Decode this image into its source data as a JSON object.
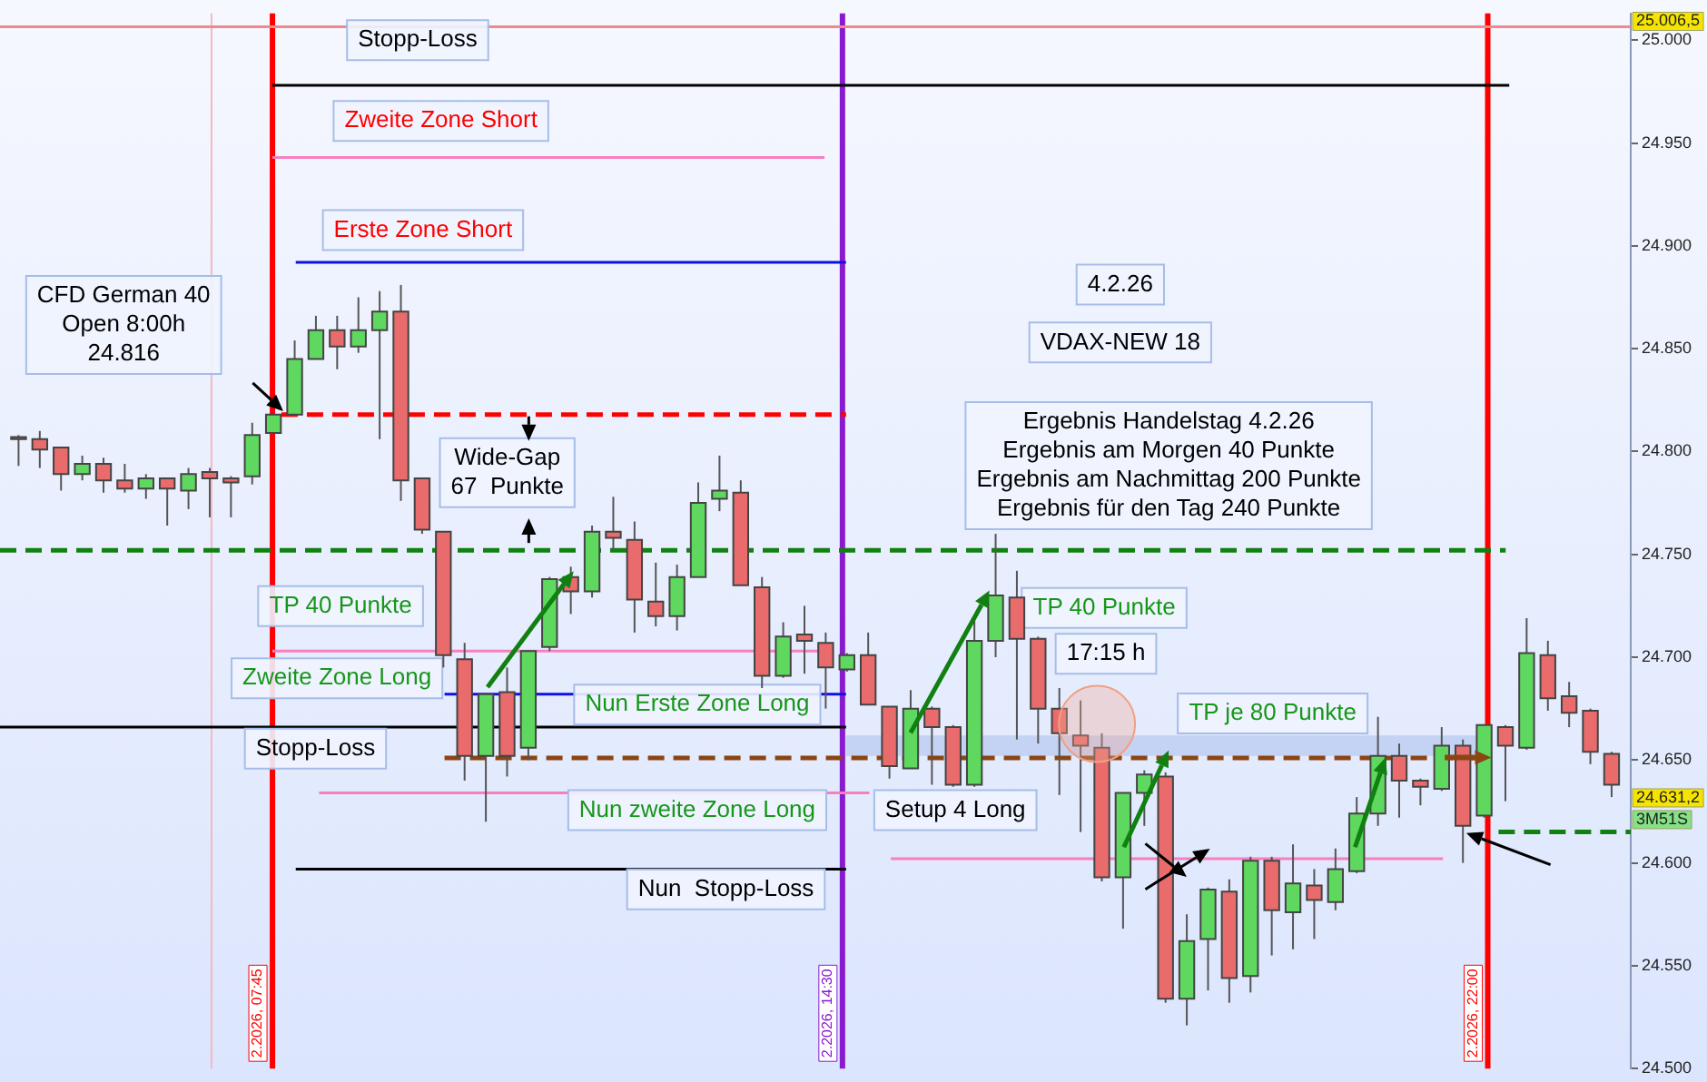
{
  "chart_data": {
    "type": "candlestick",
    "categories": [
      null,
      null,
      null,
      null,
      null,
      null,
      null,
      null,
      null,
      null,
      null,
      null,
      null,
      null,
      null,
      null,
      null,
      null,
      null,
      null,
      null,
      null,
      null,
      null,
      null,
      null,
      null,
      null,
      null,
      null,
      null,
      null,
      null,
      null,
      null,
      null,
      null,
      null,
      null,
      null,
      null,
      null,
      null,
      null,
      null,
      null,
      null,
      null,
      null,
      null,
      null,
      null,
      null,
      null,
      null,
      null,
      null,
      null,
      null,
      null,
      null,
      null,
      null,
      null,
      null,
      null,
      null,
      null,
      null,
      null,
      null,
      null,
      null,
      null,
      null,
      null
    ],
    "ohlc": [
      [
        24807,
        24808,
        24793,
        24806
      ],
      [
        24806,
        24810,
        24792,
        24801
      ],
      [
        24802,
        24802,
        24781,
        24789
      ],
      [
        24789,
        24798,
        24786,
        24794
      ],
      [
        24794,
        24797,
        24780,
        24786
      ],
      [
        24786,
        24794,
        24780,
        24782
      ],
      [
        24782,
        24789,
        24777,
        24787
      ],
      [
        24787,
        24787,
        24764,
        24782
      ],
      [
        24781,
        24792,
        24772,
        24789
      ],
      [
        24790,
        24792,
        24768,
        24787
      ],
      [
        24787,
        24788,
        24768,
        24785
      ],
      [
        24788,
        24814,
        24784,
        24808
      ],
      [
        24809,
        24818,
        24809,
        24818
      ],
      [
        24818,
        24854,
        24818,
        24845
      ],
      [
        24845,
        24866,
        24845,
        24859
      ],
      [
        24859,
        24866,
        24840,
        24851
      ],
      [
        24851,
        24875,
        24848,
        24859
      ],
      [
        24859,
        24878,
        24806,
        24868
      ],
      [
        24868,
        24881,
        24776,
        24786
      ],
      [
        24787,
        24787,
        24760,
        24762
      ],
      [
        24761,
        24761,
        24695,
        24701
      ],
      [
        24699,
        24707,
        24640,
        24652
      ],
      [
        24652,
        24682,
        24620,
        24682
      ],
      [
        24683,
        24695,
        24642,
        24652
      ],
      [
        24656,
        24703,
        24650,
        24703
      ],
      [
        24705,
        24739,
        24703,
        24738
      ],
      [
        24739,
        24744,
        24721,
        24732
      ],
      [
        24732,
        24764,
        24729,
        24761
      ],
      [
        24761,
        24778,
        24752,
        24758
      ],
      [
        24757,
        24766,
        24712,
        24728
      ],
      [
        24727,
        24746,
        24715,
        24720
      ],
      [
        24720,
        24745,
        24713,
        24739
      ],
      [
        24739,
        24785,
        24739,
        24775
      ],
      [
        24777,
        24798,
        24771,
        24781
      ],
      [
        24780,
        24786,
        24735,
        24735
      ],
      [
        24734,
        24739,
        24685,
        24691
      ],
      [
        24691,
        24717,
        24690,
        24710
      ],
      [
        24711,
        24725,
        24692,
        24708
      ],
      [
        24707,
        24712,
        24675,
        24695
      ],
      [
        24694,
        24702,
        24693,
        24701
      ],
      [
        24701,
        24712,
        24677,
        24677
      ],
      [
        24676,
        24676,
        24641,
        24647
      ],
      [
        24646,
        24684,
        24646,
        24675
      ],
      [
        24675,
        24676,
        24638,
        24666
      ],
      [
        24666,
        24667,
        24637,
        24638
      ],
      [
        24638,
        24718,
        24637,
        24708
      ],
      [
        24708,
        24760,
        24700,
        24730
      ],
      [
        24729,
        24742,
        24660,
        24709
      ],
      [
        24709,
        24710,
        24658,
        24675
      ],
      [
        24675,
        24685,
        24633,
        24663
      ],
      [
        24662,
        24679,
        24615,
        24657
      ],
      [
        24656,
        24663,
        24591,
        24593
      ],
      [
        24593,
        24634,
        24568,
        24634
      ],
      [
        24634,
        24645,
        24618,
        24643
      ],
      [
        24642,
        24644,
        24532,
        24534
      ],
      [
        24534,
        24575,
        24521,
        24562
      ],
      [
        24563,
        24588,
        24538,
        24587
      ],
      [
        24586,
        24592,
        24532,
        24544
      ],
      [
        24545,
        24603,
        24537,
        24601
      ],
      [
        24601,
        24603,
        24555,
        24577
      ],
      [
        24576,
        24609,
        24558,
        24590
      ],
      [
        24589,
        24597,
        24563,
        24582
      ],
      [
        24581,
        24607,
        24577,
        24597
      ],
      [
        24596,
        24632,
        24595,
        24624
      ],
      [
        24624,
        24671,
        24618,
        24652
      ],
      [
        24652,
        24658,
        24622,
        24640
      ],
      [
        24640,
        24641,
        24628,
        24637
      ],
      [
        24636,
        24666,
        24635,
        24657
      ],
      [
        24657,
        24660,
        24600,
        24618
      ],
      [
        24623,
        24667,
        24622,
        24667
      ],
      [
        24666,
        24667,
        24630,
        24657
      ],
      [
        24656,
        24719,
        24655,
        24702
      ],
      [
        24701,
        24708,
        24674,
        24680
      ],
      [
        24681,
        24688,
        24666,
        24673
      ],
      [
        24674,
        24675,
        24648,
        24654
      ],
      [
        24653,
        24654,
        24632,
        24638
      ]
    ],
    "colors": [
      "#e96b6b",
      "#e96b6b",
      "#e96b6b",
      "#5fd85f",
      "#e96b6b",
      "#e96b6b",
      "#5fd85f",
      "#e96b6b",
      "#5fd85f",
      "#e96b6b",
      "#e96b6b",
      "#5fd85f",
      "#5fd85f",
      "#5fd85f",
      "#5fd85f",
      "#e96b6b",
      "#5fd85f",
      "#5fd85f",
      "#e96b6b",
      "#e96b6b",
      "#e96b6b",
      "#e96b6b",
      "#5fd85f",
      "#e96b6b",
      "#5fd85f",
      "#5fd85f",
      "#e96b6b",
      "#5fd85f",
      "#e96b6b",
      "#e96b6b",
      "#e96b6b",
      "#5fd85f",
      "#5fd85f",
      "#5fd85f",
      "#e96b6b",
      "#e96b6b",
      "#5fd85f",
      "#e96b6b",
      "#e96b6b",
      "#5fd85f",
      "#e96b6b",
      "#e96b6b",
      "#5fd85f",
      "#e96b6b",
      "#e96b6b",
      "#5fd85f",
      "#5fd85f",
      "#e96b6b",
      "#e96b6b",
      "#e96b6b",
      "#e96b6b",
      "#e96b6b",
      "#5fd85f",
      "#5fd85f",
      "#e96b6b",
      "#5fd85f",
      "#5fd85f",
      "#e96b6b",
      "#5fd85f",
      "#e96b6b",
      "#5fd85f",
      "#e96b6b",
      "#5fd85f",
      "#5fd85f",
      "#5fd85f",
      "#e96b6b",
      "#e96b6b",
      "#5fd85f",
      "#e96b6b",
      "#5fd85f",
      "#e96b6b",
      "#5fd85f",
      "#e96b6b",
      "#e96b6b",
      "#e96b6b",
      "#e96b6b"
    ],
    "ref_lines": [
      {
        "axis": "y",
        "value": 25006.5,
        "label": "25.006,5",
        "color": "#f08890",
        "line_style": "solid"
      },
      {
        "axis": "y",
        "value": 24978,
        "label": null,
        "color": "#000000",
        "line_style": "solid"
      },
      {
        "axis": "y",
        "value": 24943,
        "label": null,
        "color": "#f77fbe",
        "line_style": "solid"
      },
      {
        "axis": "y",
        "value": 24892,
        "label": null,
        "color": "#1010e0",
        "line_style": "solid"
      },
      {
        "axis": "y",
        "value": 24818,
        "label": null,
        "color": "#ff0000",
        "line_style": "dashed"
      },
      {
        "axis": "y",
        "value": 24752,
        "label": null,
        "color": "#108010",
        "line_style": "dashed"
      },
      {
        "axis": "y",
        "value": 24703,
        "label": null,
        "color": "#f77fbe",
        "line_style": "solid"
      },
      {
        "axis": "y",
        "value": 24682,
        "label": null,
        "color": "#1010e0",
        "line_style": "solid"
      },
      {
        "axis": "y",
        "value": 24666,
        "label": null,
        "color": "#000000",
        "line_style": "solid"
      },
      {
        "axis": "y",
        "value": 24651,
        "label": null,
        "color": "#8b4513",
        "line_style": "dashed"
      },
      {
        "axis": "y",
        "value": 24634,
        "label": null,
        "color": "#f77fbe",
        "line_style": "solid"
      },
      {
        "axis": "y",
        "value": 24602,
        "label": null,
        "color": "#f77fbe",
        "line_style": "solid"
      },
      {
        "axis": "y",
        "value": 24597,
        "label": null,
        "color": "#000000",
        "line_style": "solid"
      },
      {
        "axis": "y",
        "value": 24615,
        "label": null,
        "color": "#108010",
        "line_style": "dashed"
      }
    ],
    "bands": [
      {
        "axis": "y",
        "from": 24652,
        "to": 24662,
        "label": null,
        "color": "#b8c8f0"
      }
    ],
    "annotations": [
      "Stopp-Loss",
      "Zweite Zone Short",
      "Erste Zone Short",
      "CFD German 40\nOpen 8:00h\n24.816",
      "Wide-Gap\n67  Punkte",
      "TP 40 Punkte",
      "Zweite Zone Long",
      "Stopp-Loss",
      "Nun Erste Zone Long",
      "Nun zweite Zone Long",
      "Nun  Stopp-Loss",
      "4.2.26",
      "VDAX-NEW 18",
      "Ergebnis Handelstag 4.2.26\nErgebnis am Morgen 40 Punkte\nErgebnis am Nachmittag 200 Punkte\nErgebnis für den Tag 240 Punkte",
      "TP 40 Punkte",
      "17:15 h",
      "TP je 80 Punkte",
      "Setup 4 Long",
      "24.631,2",
      "3M51S",
      "2.2026, 07:45",
      "2.2026, 14:30",
      "2.2026, 22:00"
    ],
    "ylim": [
      24500,
      25013
    ],
    "yticks": [
      {
        "value": 24500,
        "label": "24.500"
      },
      {
        "value": 24550,
        "label": "24.550"
      },
      {
        "value": 24600,
        "label": "24.600"
      },
      {
        "value": 24650,
        "label": "24.650"
      },
      {
        "value": 24700,
        "label": "24.700"
      },
      {
        "value": 24750,
        "label": "24.750"
      },
      {
        "value": 24800,
        "label": "24.800"
      },
      {
        "value": 24850,
        "label": "24.850"
      },
      {
        "value": 24900,
        "label": "24.900"
      },
      {
        "value": 24950,
        "label": "24.950"
      },
      {
        "value": 25000,
        "label": "25.000"
      }
    ],
    "tick_labels": "y",
    "grid": false,
    "legend": false
  }
}
